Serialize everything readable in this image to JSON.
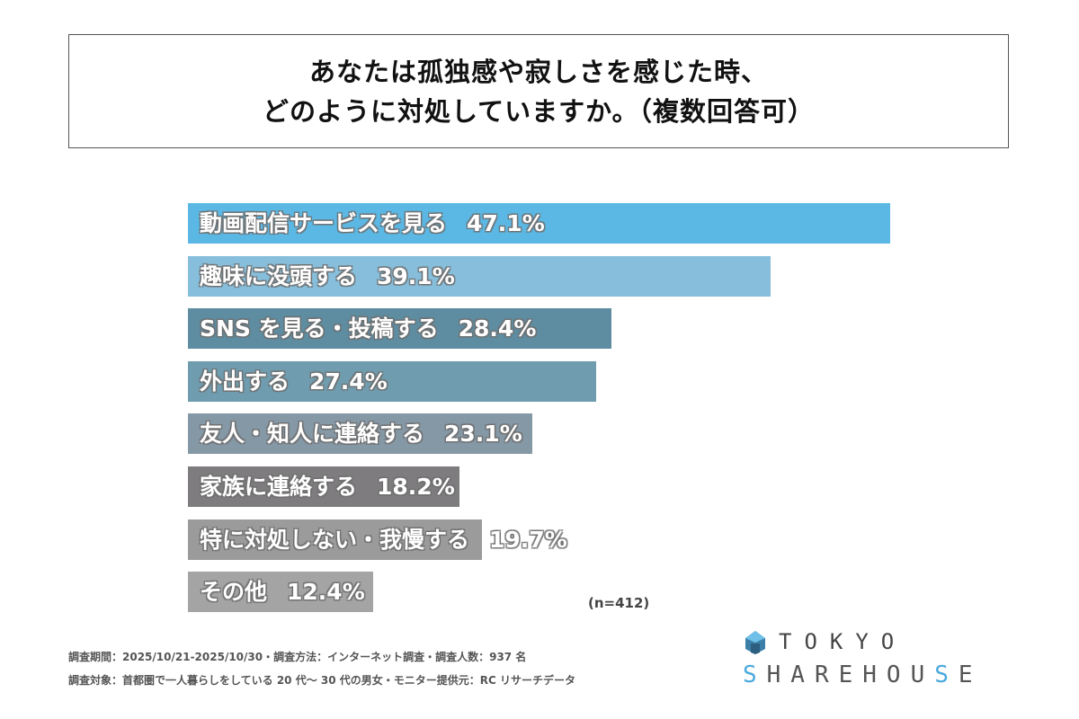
{
  "title": {
    "line1": "あなたは孤独感や寂しさを感じた時、",
    "line2": "どのように対処していますか。（複数回答可）"
  },
  "chart_data": {
    "type": "bar",
    "orientation": "horizontal",
    "categories": [
      "動画配信サービスを見る",
      "趣味に没頭する",
      "SNS を見る・投稿する",
      "外出する",
      "友人・知人に連絡する",
      "家族に連絡する",
      "特に対処しない・我慢する",
      "その他"
    ],
    "values": [
      47.1,
      39.1,
      28.4,
      27.4,
      23.1,
      18.2,
      19.7,
      12.4
    ],
    "value_labels": [
      "47.1%",
      "39.1%",
      "28.4%",
      "27.4%",
      "23.1%",
      "18.2%",
      "19.7%",
      "12.4%"
    ],
    "colors": [
      "#5bb8e4",
      "#86bedb",
      "#5e8ca0",
      "#6f9cae",
      "#8598a6",
      "#7e7c7e",
      "#9b9b9b",
      "#a4a4a4"
    ],
    "unit": "%",
    "grid": false,
    "legend": "none",
    "annotation": "(n=412)"
  },
  "footer": {
    "line1": "調査期間：2025/10/21-2025/10/30・調査方法：インターネット調査・調査人数：937 名",
    "line2": "調査対象：首都圏で一人暮らしをしている 20 代～ 30 代の男女・モニター提供元：RC リサーチデータ"
  },
  "logo": {
    "top": "TOKYO",
    "bottom": "SHAREHOUSE",
    "accent_color": "#4aa9dc"
  }
}
